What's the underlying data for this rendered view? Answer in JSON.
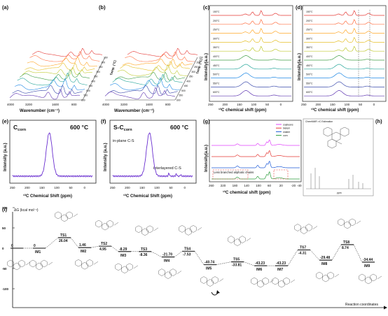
{
  "panels": {
    "a": {
      "label": "(a)",
      "xlabel": "Wavenumber (cm⁻¹)",
      "xticks": [
        "4000",
        "3200",
        "1600",
        "800"
      ],
      "zlabel": "Temp. (°C)",
      "zticks": [
        "150",
        "200",
        "250",
        "300",
        "350",
        "400",
        "450",
        "500",
        "550",
        "600"
      ]
    },
    "b": {
      "label": "(b)",
      "xlabel": "Wavenumber (cm⁻¹)",
      "xticks": [
        "4000",
        "3200",
        "1600",
        "800"
      ],
      "zlabel": "Temp. (°C)",
      "zticks": [
        "150",
        "200",
        "250",
        "300",
        "350",
        "400",
        "450",
        "500",
        "550",
        "600"
      ]
    },
    "c": {
      "label": "(c)",
      "xlabel": "¹³C chemical shift (ppm)",
      "ylabel": "Intensity(a.u.)",
      "xticks": [
        "250",
        "200",
        "150",
        "100",
        "50",
        "0"
      ],
      "temps": [
        "150°C",
        "200°C",
        "250°C",
        "300°C",
        "350°C",
        "400°C",
        "450°C",
        "500°C",
        "550°C",
        "600°C"
      ]
    },
    "d": {
      "label": "(d)",
      "xlabel": "¹³C chemical shift (ppm)",
      "ylabel": "Intensity(a.u.)",
      "xticks": [
        "250",
        "200",
        "150",
        "100",
        "50",
        "0"
      ],
      "temps": [
        "150°C",
        "200°C",
        "250°C",
        "300°C",
        "350°C",
        "400°C",
        "450°C",
        "500°C",
        "550°C",
        "600°C"
      ]
    },
    "e": {
      "label": "(e)",
      "title_main": "C",
      "title_sub": "corn",
      "temp": "600 °C",
      "xlabel": "¹³C Chemical Shift (ppm)",
      "ylabel": "Intensity (a.u.)",
      "xticks": [
        "250",
        "200",
        "150",
        "100",
        "50",
        "0"
      ]
    },
    "f": {
      "label": "(f)",
      "title_main": "S-C",
      "title_sub": "corn",
      "temp": "600 °C",
      "xlabel": "¹³C Chemical Shift (ppm)",
      "ylabel": "Intensity (a.u.)",
      "xticks": [
        "250",
        "200",
        "150",
        "100",
        "50",
        "0"
      ],
      "annotation_inplane": "in-plane C-S",
      "annotation_interlayered": "interlayered C-S"
    },
    "g": {
      "label": "(g)",
      "xlabel": "¹³C chemical shift (ppm)",
      "ylabel": "Intensity(a.u.)",
      "xticks": [
        "260",
        "220",
        "180",
        "140",
        "100",
        "60",
        "20",
        "-20",
        "-40"
      ],
      "legend": [
        "soybeans",
        "bietem",
        "shaliet",
        "corn"
      ],
      "annotation": "Less branched aliphatic chains"
    },
    "h": {
      "label": "(h)",
      "header": "ChemNMR ¹³C Estimation",
      "axis": "ppm"
    },
    "i": {
      "label": "(i)",
      "yaxis": "ΔG (kcal mol⁻¹)",
      "xaxis": "Reaction coordinates",
      "yticks": [
        "100",
        "50",
        "0",
        "-50",
        "-100"
      ],
      "states": [
        {
          "name": "",
          "value": "0"
        },
        {
          "name": "IM1",
          "value": "0"
        },
        {
          "name": "TS1",
          "value": "26.04"
        },
        {
          "name": "IM2",
          "value": "1.46"
        },
        {
          "name": "TS2",
          "value": "4.95"
        },
        {
          "name": "IM3",
          "value": "-8.29"
        },
        {
          "name": "TS3",
          "value": "-8.36"
        },
        {
          "name": "IM4",
          "value": "-21.70"
        },
        {
          "name": "TS4",
          "value": "-7.53"
        },
        {
          "name": "IM5",
          "value": "-40.74"
        },
        {
          "name": "TS5",
          "value": "-33.81"
        },
        {
          "name": "IM6",
          "value": "-43.23"
        },
        {
          "name": "IM7",
          "value": "-43.23"
        },
        {
          "name": "TS7",
          "value": "-4.31"
        },
        {
          "name": "IM8",
          "value": "-29.48"
        },
        {
          "name": "TS8",
          "value": "8.74"
        },
        {
          "name": "IM9",
          "value": "-34.44"
        }
      ]
    }
  },
  "colors": {
    "temp_series": [
      "#e53935",
      "#ff7043",
      "#ffa726",
      "#e6c02a",
      "#c0ca33",
      "#43a047",
      "#26a69a",
      "#1e88e5",
      "#3949ab",
      "#5e35b1"
    ],
    "nmr_ef": "#6a2fd0",
    "annotation_red": "#e53935",
    "g_series": [
      "#e040fb",
      "#e53935",
      "#1e5bd8",
      "#2e9e3e"
    ]
  }
}
